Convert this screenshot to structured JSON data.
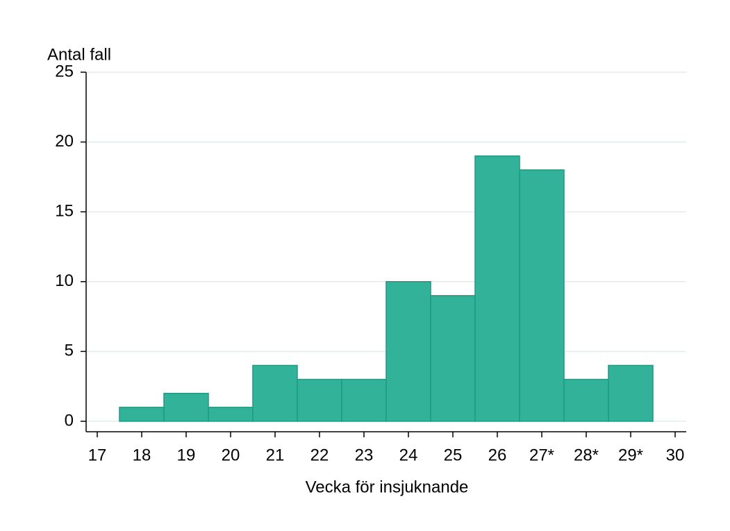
{
  "chart_data": {
    "type": "histogram",
    "title": "Antal fall",
    "x_label": "Vecka för insjuknande",
    "bins": [
      17.5,
      18.5,
      19.5,
      20.5,
      21.5,
      22.5,
      23.5,
      24.5,
      25.5,
      26.5,
      27.5,
      28.5,
      29.5
    ],
    "counts": [
      1,
      2,
      1,
      4,
      3,
      3,
      10,
      9,
      19,
      18,
      3,
      4
    ],
    "color": "#33b29a",
    "edge_color": "#1b9c82",
    "xlim": [
      16.75,
      30.25
    ],
    "xticks": [
      17,
      18,
      19,
      20,
      21,
      22,
      23,
      24,
      25,
      26,
      {
        "value": 27,
        "label": "27*"
      },
      {
        "value": 28,
        "label": "28*"
      },
      {
        "value": 29,
        "label": "29*"
      },
      30
    ],
    "ylim": [
      -0.75,
      25
    ],
    "yticks": [
      0,
      5,
      10,
      15,
      20,
      25
    ],
    "grid": true
  }
}
